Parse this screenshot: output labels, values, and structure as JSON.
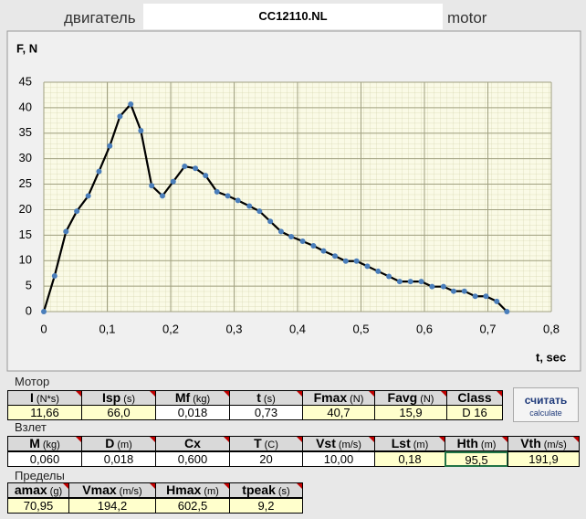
{
  "header": {
    "label_ru": "двигатель",
    "file": "CC12110.NL",
    "label_en": "motor"
  },
  "chart_data": {
    "type": "line",
    "ylabel": "F, N",
    "xlabel": "t, sec",
    "color": "#000000",
    "marker_color": "#4a7ebb",
    "grid": true,
    "x": [
      0,
      0.017,
      0.035,
      0.052,
      0.07,
      0.087,
      0.104,
      0.12,
      0.137,
      0.153,
      0.17,
      0.187,
      0.204,
      0.222,
      0.239,
      0.255,
      0.273,
      0.29,
      0.306,
      0.324,
      0.34,
      0.357,
      0.374,
      0.39,
      0.408,
      0.425,
      0.441,
      0.459,
      0.476,
      0.493,
      0.51,
      0.527,
      0.544,
      0.561,
      0.578,
      0.595,
      0.612,
      0.63,
      0.646,
      0.663,
      0.68,
      0.697,
      0.714,
      0.73
    ],
    "values": [
      0,
      7,
      15.7,
      19.7,
      22.7,
      27.5,
      32.5,
      38.3,
      40.7,
      35.5,
      24.7,
      22.7,
      25.5,
      28.5,
      28.1,
      26.7,
      23.5,
      22.7,
      21.8,
      20.7,
      19.7,
      17.7,
      15.7,
      14.7,
      13.8,
      12.9,
      11.9,
      10.9,
      9.9,
      9.9,
      8.9,
      7.9,
      6.9,
      5.9,
      5.9,
      5.9,
      4.9,
      4.9,
      4.0,
      4.0,
      3.0,
      3.0,
      2.0,
      0
    ],
    "xlim": [
      0,
      0.8
    ],
    "ylim": [
      0,
      45
    ],
    "xticks": [
      0,
      {
        "value": 0.1,
        "label": "0,1"
      },
      {
        "value": 0.2,
        "label": "0,2"
      },
      {
        "value": 0.3,
        "label": "0,3"
      },
      {
        "value": 0.4,
        "label": "0,4"
      },
      {
        "value": 0.5,
        "label": "0,5"
      },
      {
        "value": 0.6,
        "label": "0,6"
      },
      {
        "value": 0.7,
        "label": "0,7"
      },
      {
        "value": 0.8,
        "label": "0,8"
      }
    ],
    "yticks": [
      0,
      5,
      10,
      15,
      20,
      25,
      30,
      35,
      40,
      45
    ]
  },
  "sections": [
    {
      "title": "Мотор",
      "columns": [
        {
          "symbol": "I",
          "unit": "(N*s)",
          "value": "11,66"
        },
        {
          "symbol": "Isp",
          "unit": "(s)",
          "value": "66,0"
        },
        {
          "symbol": "Mf",
          "unit": "(kg)",
          "value": "0,018"
        },
        {
          "symbol": "t",
          "unit": "(s)",
          "value": "0,73"
        },
        {
          "symbol": "Fmax",
          "unit": "(N)",
          "value": "40,7"
        },
        {
          "symbol": "Favg",
          "unit": "(N)",
          "value": "15,9"
        },
        {
          "symbol": "Class",
          "unit": "",
          "value": "D 16"
        }
      ]
    },
    {
      "title": "Взлет",
      "columns": [
        {
          "symbol": "M",
          "unit": "(kg)",
          "value": "0,060"
        },
        {
          "symbol": "D",
          "unit": "(m)",
          "value": "0,018"
        },
        {
          "symbol": "Cx",
          "unit": "",
          "value": "0,600"
        },
        {
          "symbol": "T",
          "unit": "(C)",
          "value": "20"
        },
        {
          "symbol": "Vst",
          "unit": "(m/s)",
          "value": "10,00"
        },
        {
          "symbol": "Lst",
          "unit": "(m)",
          "value": "0,18"
        },
        {
          "symbol": "Hth",
          "unit": "(m)",
          "value": "95,5"
        },
        {
          "symbol": "Vth",
          "unit": "(m/s)",
          "value": "191,9"
        }
      ]
    },
    {
      "title": "Пределы",
      "columns": [
        {
          "symbol": "amax",
          "unit": "(g)",
          "value": "70,95"
        },
        {
          "symbol": "Vmax",
          "unit": "(m/s)",
          "value": "194,2"
        },
        {
          "symbol": "Hmax",
          "unit": "(m)",
          "value": "602,5"
        },
        {
          "symbol": "tpeak",
          "unit": "(s)",
          "value": "9,2"
        }
      ]
    }
  ],
  "button": {
    "label_ru": "считать",
    "label_en": "calculate"
  }
}
